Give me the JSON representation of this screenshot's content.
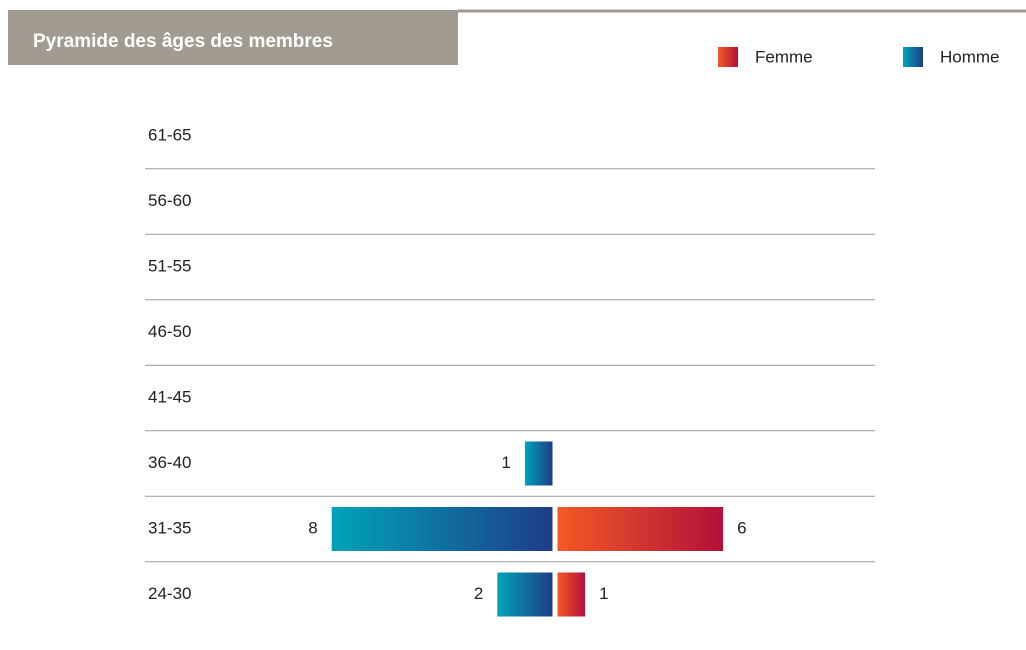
{
  "chart_data": {
    "type": "pyramid",
    "title": "Pyramide des âges des membres",
    "categories": [
      "61-65",
      "56-60",
      "51-55",
      "46-50",
      "41-45",
      "36-40",
      "31-35",
      "24-30"
    ],
    "series": [
      {
        "name": "Femme",
        "color": [
          "#f15a24",
          "#b3103a"
        ],
        "side": "right",
        "values": [
          null,
          null,
          null,
          null,
          null,
          null,
          6,
          1
        ]
      },
      {
        "name": "Homme",
        "color": [
          "#00a3b9",
          "#1f3c88"
        ],
        "side": "left",
        "values": [
          null,
          null,
          null,
          null,
          null,
          1,
          8,
          2
        ]
      }
    ]
  }
}
